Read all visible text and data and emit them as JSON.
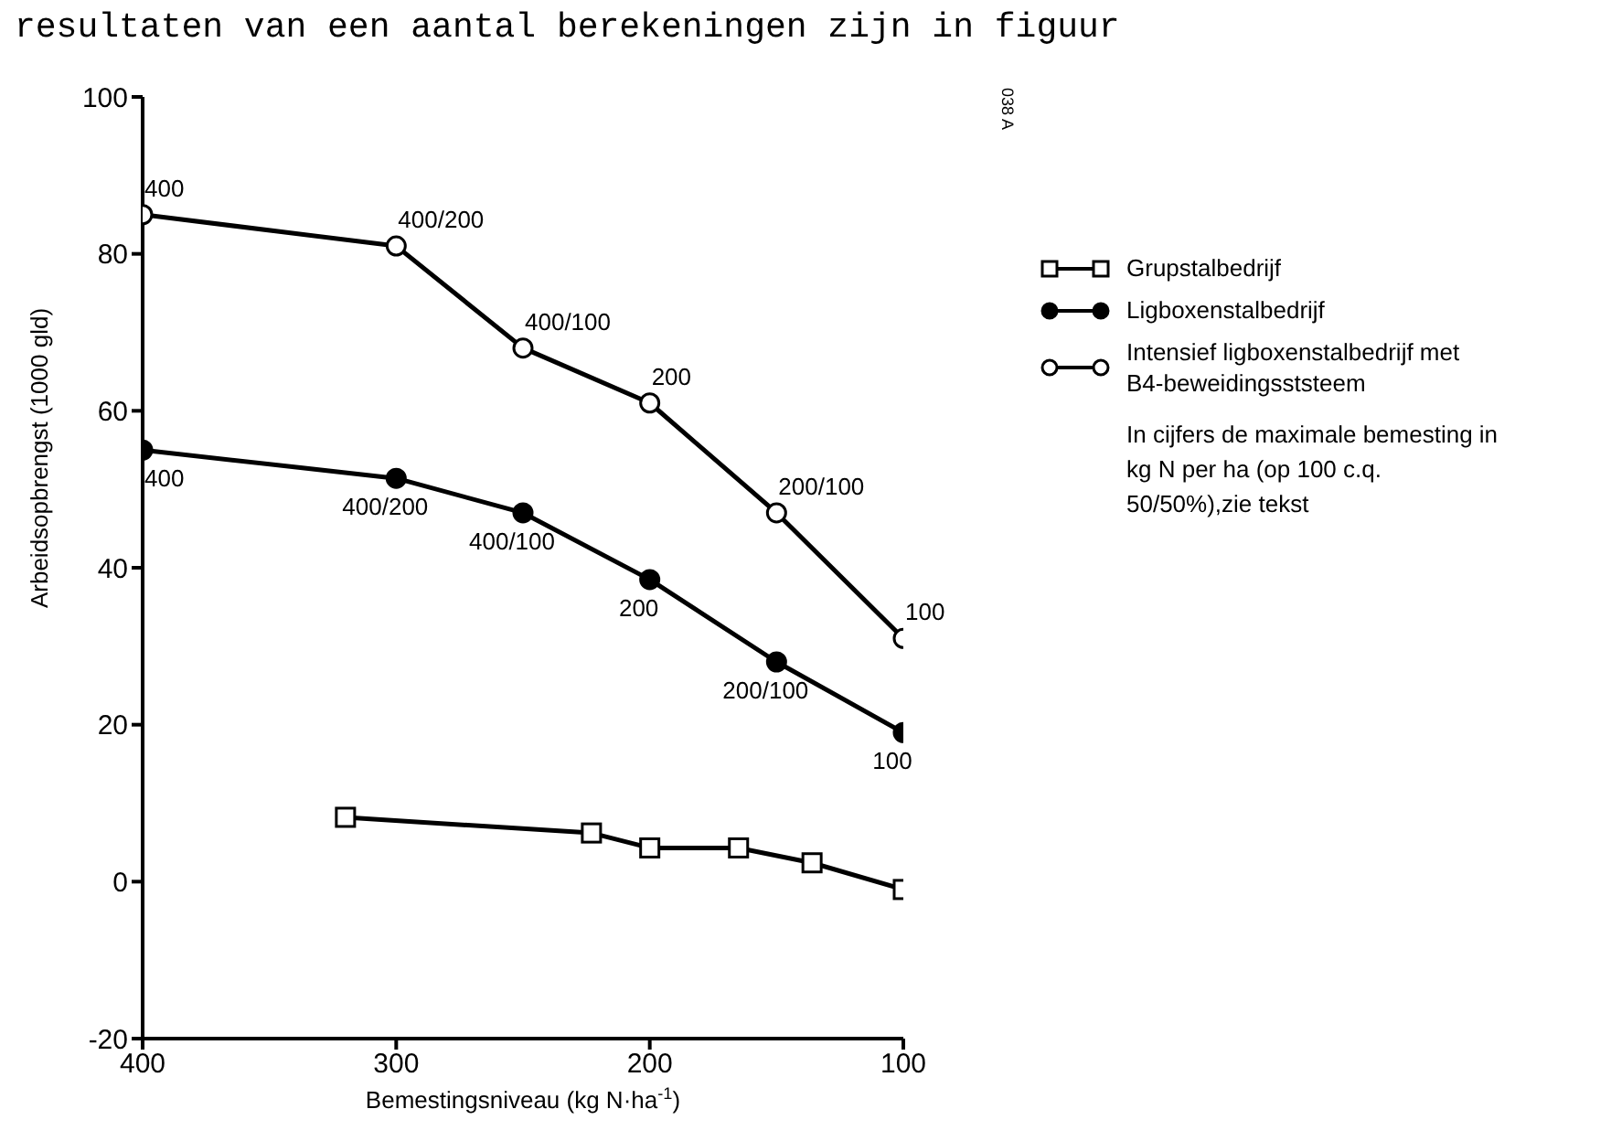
{
  "chart_data": {
    "type": "line",
    "xlabel": "Bemestingsniveau (kg N·ha$^{-1}$)",
    "ylabel": "Arbeidsopbrengst (1000 gld)",
    "xlim": [
      400,
      100
    ],
    "xticks": [
      400,
      300,
      200,
      100
    ],
    "ylim": [
      -20,
      100
    ],
    "yticks": [
      -20,
      0,
      20,
      40,
      60,
      80,
      100
    ],
    "legend": "right",
    "annotations": [
      "resultaten van een aantal berekeningen zijn in figuur",
      "038 A",
      "In cijfers de maximale bemesting in kg N per ha (op 100 c.q. 50/50%),zie tekst",
      {
        "text": "400",
        "x": 400,
        "y": 55
      },
      {
        "text": "400/200",
        "x": 300,
        "y": 51.4
      },
      {
        "text": "400/100",
        "x": 250,
        "y": 47
      },
      {
        "text": "200",
        "x": 200,
        "y": 38.5
      },
      {
        "text": "200/100",
        "x": 150,
        "y": 28
      },
      {
        "text": "100",
        "x": 100,
        "y": 19
      },
      {
        "text": "400",
        "x": 400,
        "y": 85
      },
      {
        "text": "400/200",
        "x": 300,
        "y": 81
      },
      {
        "text": "400/100",
        "x": 250,
        "y": 68
      },
      {
        "text": "200",
        "x": 200,
        "y": 61
      },
      {
        "text": "200/100",
        "x": 150,
        "y": 47
      },
      {
        "text": "100",
        "x": 100,
        "y": 31
      }
    ],
    "series": [
      {
        "name": "Grupstalbedrijf",
        "color": "#000000",
        "marker": "square",
        "x": [
          320,
          223,
          200,
          165,
          136,
          100
        ],
        "values": [
          8.2,
          6.2,
          4.3,
          4.3,
          2.4,
          -1
        ]
      },
      {
        "name": "Ligboxenstalbedrijf",
        "color": "#000000",
        "marker": "circle",
        "x": [
          400,
          300,
          250,
          200,
          150,
          100
        ],
        "values": [
          55,
          51.4,
          47,
          38.5,
          28,
          19
        ]
      },
      {
        "name": "Intensief ligboxenstalbedrijf met B4-beweidingsststeem",
        "color": "#000000",
        "marker": "open-circle",
        "x": [
          400,
          300,
          250,
          200,
          150,
          100
        ],
        "values": [
          85,
          81,
          68,
          61,
          47,
          31
        ]
      }
    ]
  }
}
